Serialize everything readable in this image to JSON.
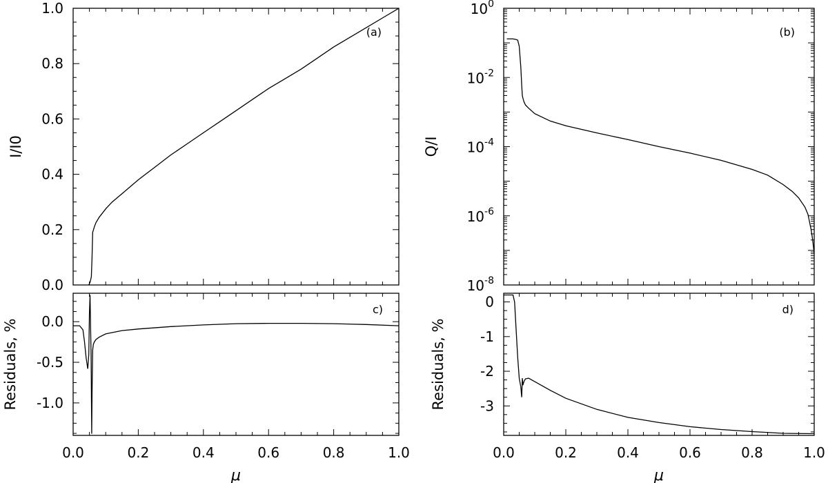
{
  "chart_data": [
    {
      "id": "a",
      "type": "line",
      "panel_label": "(a)",
      "xlabel": "",
      "ylabel": "I/I0",
      "xlim": [
        0.0,
        1.0
      ],
      "ylim": [
        0.0,
        1.0
      ],
      "x_ticks": [
        "0.0",
        "0.2",
        "0.4",
        "0.6",
        "0.8",
        "1.0"
      ],
      "show_x_ticklabels": false,
      "y_ticks": [
        "0.0",
        "0.2",
        "0.4",
        "0.6",
        "0.8",
        "1.0"
      ],
      "y_tick_values": [
        0.0,
        0.2,
        0.4,
        0.6,
        0.8,
        1.0
      ],
      "series": [
        {
          "x": [
            0.048,
            0.05,
            0.052,
            0.054,
            0.056,
            0.058,
            0.06,
            0.065,
            0.07,
            0.08,
            0.1,
            0.12,
            0.15,
            0.2,
            0.25,
            0.3,
            0.35,
            0.4,
            0.45,
            0.5,
            0.55,
            0.6,
            0.65,
            0.7,
            0.75,
            0.8,
            0.85,
            0.9,
            0.95,
            1.0
          ],
          "y": [
            0.0,
            0.005,
            0.01,
            0.02,
            0.03,
            0.1,
            0.19,
            0.21,
            0.225,
            0.245,
            0.275,
            0.3,
            0.33,
            0.38,
            0.425,
            0.47,
            0.51,
            0.55,
            0.59,
            0.63,
            0.67,
            0.71,
            0.745,
            0.78,
            0.82,
            0.86,
            0.895,
            0.93,
            0.965,
            1.0
          ]
        }
      ]
    },
    {
      "id": "b",
      "type": "line",
      "panel_label": "(b)",
      "xlabel": "",
      "ylabel": "Q/I",
      "log_scale_y": true,
      "xlim": [
        0.0,
        1.0
      ],
      "ylim": [
        1e-08,
        1
      ],
      "x_ticks": [
        "0.0",
        "0.2",
        "0.4",
        "0.6",
        "0.8",
        "1.0"
      ],
      "show_x_ticklabels": false,
      "y_tick_exponents": [
        -8,
        -6,
        -4,
        -2,
        0
      ],
      "y_tick_base": "10",
      "series": [
        {
          "x": [
            0.01,
            0.02,
            0.03,
            0.04,
            0.045,
            0.05,
            0.055,
            0.058,
            0.06,
            0.062,
            0.065,
            0.07,
            0.08,
            0.1,
            0.15,
            0.2,
            0.3,
            0.4,
            0.5,
            0.6,
            0.7,
            0.8,
            0.85,
            0.9,
            0.93,
            0.95,
            0.97,
            0.98,
            0.99,
            0.995,
            1.0
          ],
          "y": [
            0.13,
            0.13,
            0.13,
            0.125,
            0.12,
            0.08,
            0.02,
            0.006,
            0.003,
            0.0025,
            0.002,
            0.0016,
            0.0013,
            0.0009,
            0.00055,
            0.0004,
            0.00025,
            0.00016,
            0.0001,
            6.5e-05,
            4e-05,
            2.2e-05,
            1.5e-05,
            8e-06,
            5e-06,
            3.3e-06,
            1.8e-06,
            1.1e-06,
            4e-07,
            2e-07,
            8e-08
          ]
        }
      ]
    },
    {
      "id": "c",
      "type": "line",
      "panel_label": "c)",
      "xlabel": "μ",
      "ylabel": "Residuals, %",
      "xlim": [
        0.0,
        1.0
      ],
      "ylim": [
        -1.4,
        0.35
      ],
      "x_ticks": [
        "0.0",
        "0.2",
        "0.4",
        "0.6",
        "0.8",
        "1.0"
      ],
      "show_x_ticklabels": true,
      "y_ticks": [
        "0.0",
        "-0.5",
        "-1.0"
      ],
      "y_tick_values": [
        0.0,
        -0.5,
        -1.0
      ],
      "series": [
        {
          "x": [
            0.0,
            0.02,
            0.03,
            0.035,
            0.04,
            0.045,
            0.048,
            0.05,
            0.052,
            0.055,
            0.057,
            0.058,
            0.06,
            0.062,
            0.065,
            0.07,
            0.08,
            0.1,
            0.15,
            0.2,
            0.3,
            0.4,
            0.5,
            0.6,
            0.7,
            0.8,
            0.9,
            1.0
          ],
          "y": [
            -0.05,
            -0.05,
            -0.1,
            -0.25,
            -0.45,
            -0.58,
            -0.4,
            0.1,
            0.33,
            -0.4,
            -1.38,
            -0.9,
            -0.35,
            -0.28,
            -0.25,
            -0.22,
            -0.19,
            -0.15,
            -0.11,
            -0.09,
            -0.06,
            -0.04,
            -0.025,
            -0.02,
            -0.02,
            -0.025,
            -0.035,
            -0.05
          ]
        }
      ]
    },
    {
      "id": "d",
      "type": "line",
      "panel_label": "d)",
      "xlabel": "μ",
      "ylabel": "Residuals, %",
      "xlim": [
        0.0,
        1.0
      ],
      "ylim": [
        -3.85,
        0.25
      ],
      "x_ticks": [
        "0.0",
        "0.2",
        "0.4",
        "0.6",
        "0.8",
        "1.0"
      ],
      "show_x_ticklabels": true,
      "y_ticks": [
        "0",
        "-1",
        "-2",
        "-3"
      ],
      "y_tick_values": [
        0,
        -1,
        -2,
        -3
      ],
      "series": [
        {
          "x": [
            0.0,
            0.03,
            0.035,
            0.04,
            0.045,
            0.05,
            0.055,
            0.058,
            0.06,
            0.062,
            0.065,
            0.07,
            0.08,
            0.1,
            0.15,
            0.2,
            0.3,
            0.4,
            0.5,
            0.6,
            0.7,
            0.8,
            0.9,
            1.0
          ],
          "y": [
            0.2,
            0.2,
            0.0,
            -0.8,
            -1.6,
            -2.2,
            -2.45,
            -2.75,
            -2.2,
            -2.4,
            -2.3,
            -2.22,
            -2.2,
            -2.3,
            -2.55,
            -2.78,
            -3.1,
            -3.33,
            -3.48,
            -3.6,
            -3.68,
            -3.74,
            -3.79,
            -3.8
          ]
        }
      ]
    }
  ]
}
